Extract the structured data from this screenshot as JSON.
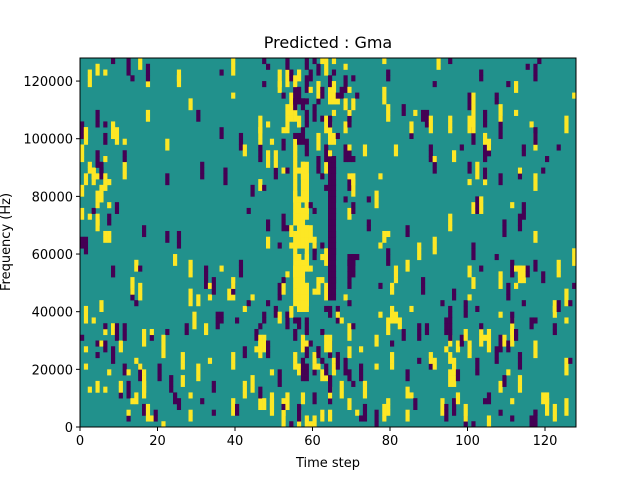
{
  "chart_data": {
    "type": "heatmap",
    "title": "Predicted : Gma",
    "xlabel": "Time step",
    "ylabel": "Frequency (Hz)",
    "xlim": [
      0,
      128
    ],
    "ylim": [
      0,
      128000
    ],
    "x_ticks": [
      0,
      20,
      40,
      60,
      80,
      100,
      120
    ],
    "y_ticks": [
      0,
      20000,
      40000,
      60000,
      80000,
      100000,
      120000
    ],
    "colormap": "viridis",
    "colors": {
      "low": "#440154",
      "mid": "#21918c",
      "high": "#fde725"
    },
    "rows": 64,
    "cols": 128,
    "grid": false,
    "legend": "none"
  }
}
